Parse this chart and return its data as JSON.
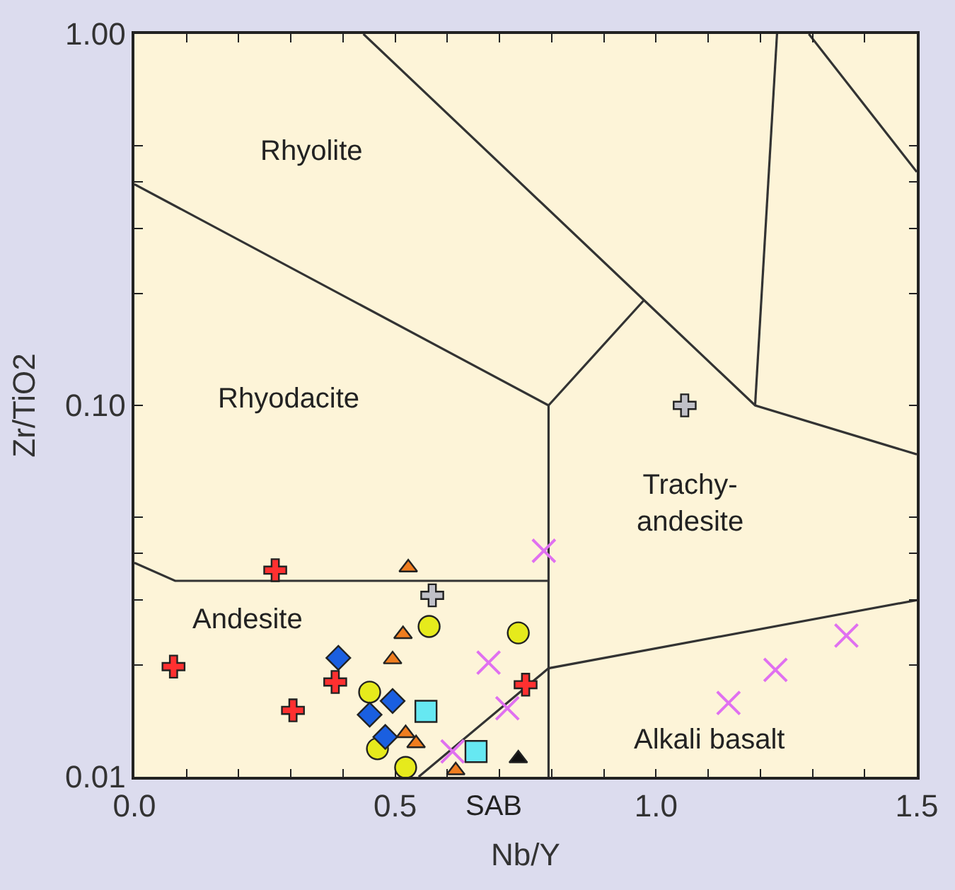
{
  "chart_data": {
    "type": "scatter",
    "xlabel": "Nb/Y",
    "ylabel": "Zr/TiO2",
    "log": "y",
    "grid": false,
    "xlim": [
      0,
      1.5
    ],
    "ylim": [
      0.01,
      1.0
    ],
    "xticks": [
      {
        "value": 0,
        "label": "0.0"
      },
      {
        "value": 0.1,
        "label": null
      },
      {
        "value": 0.2,
        "label": null
      },
      {
        "value": 0.3,
        "label": null
      },
      {
        "value": 0.4,
        "label": null
      },
      {
        "value": 0.5,
        "label": "0.5"
      },
      {
        "value": 0.6,
        "label": null
      },
      {
        "value": 0.7,
        "label": null
      },
      {
        "value": 0.8,
        "label": null
      },
      {
        "value": 0.9,
        "label": null
      },
      {
        "value": 1.0,
        "label": "1.0"
      },
      {
        "value": 1.1,
        "label": null
      },
      {
        "value": 1.2,
        "label": null
      },
      {
        "value": 1.3,
        "label": null
      },
      {
        "value": 1.4,
        "label": null
      },
      {
        "value": 1.5,
        "label": "1.5"
      }
    ],
    "yticks": [
      {
        "value": 0.01,
        "label": "0.01"
      },
      {
        "value": 0.02,
        "label": null
      },
      {
        "value": 0.03,
        "label": null
      },
      {
        "value": 0.04,
        "label": null
      },
      {
        "value": 0.05,
        "label": null
      },
      {
        "value": 0.1,
        "label": "0.10"
      },
      {
        "value": 0.2,
        "label": null
      },
      {
        "value": 0.3,
        "label": null
      },
      {
        "value": 0.4,
        "label": null
      },
      {
        "value": 0.5,
        "label": null
      },
      {
        "value": 1.0,
        "label": "1.00"
      }
    ],
    "series": [
      {
        "type": "line",
        "color": "#333333",
        "x": [
          0,
          0.794,
          0.794
        ],
        "values": [
          0.394,
          0.1,
          0.01
        ]
      },
      {
        "type": "line",
        "color": "#333333",
        "x": [
          0.439,
          0.977,
          1.19,
          1.5
        ],
        "values": [
          1.0,
          0.192,
          0.1,
          0.0738
        ]
      },
      {
        "type": "line",
        "color": "#333333",
        "x": [
          0.794,
          0.977
        ],
        "values": [
          0.1,
          0.192
        ]
      },
      {
        "type": "line",
        "color": "#333333",
        "x": [
          1.232,
          1.19
        ],
        "values": [
          1.0,
          0.1
        ]
      },
      {
        "type": "line",
        "color": "#333333",
        "x": [
          1.293,
          1.5
        ],
        "values": [
          1.0,
          0.425
        ]
      },
      {
        "type": "line",
        "color": "#333333",
        "x": [
          0,
          0.078,
          0.794
        ],
        "values": [
          0.0377,
          0.0337,
          0.0337
        ]
      },
      {
        "type": "line",
        "color": "#333333",
        "x": [
          0.545,
          0.794,
          1.5
        ],
        "values": [
          0.01,
          0.0196,
          0.0299
        ]
      },
      {
        "marker": "cross",
        "color": "#ff3030",
        "x": [
          0.27,
          0.075,
          0.385,
          0.304,
          0.75
        ],
        "values": [
          0.036,
          0.0198,
          0.018,
          0.0151,
          0.0177
        ]
      },
      {
        "marker": "x",
        "color": "#e070f0",
        "x": [
          0.785,
          0.679,
          0.715,
          0.61,
          1.139,
          1.229,
          1.365
        ],
        "values": [
          0.0406,
          0.0203,
          0.0153,
          0.0117,
          0.0158,
          0.0194,
          0.024
        ]
      },
      {
        "marker": "triangle",
        "color": "#ef7d1f",
        "x": [
          0.525,
          0.515,
          0.495,
          0.52,
          0.54,
          0.616
        ],
        "values": [
          0.0366,
          0.0242,
          0.0207,
          0.0131,
          0.0123,
          0.0104
        ]
      },
      {
        "marker": "circle",
        "color": "#e6ea1c",
        "x": [
          0.565,
          0.736,
          0.451,
          0.466,
          0.52
        ],
        "values": [
          0.0254,
          0.0244,
          0.0169,
          0.0119,
          0.0106
        ]
      },
      {
        "marker": "diamond",
        "color": "#1a5fe0",
        "x": [
          0.391,
          0.495,
          0.451,
          0.481
        ],
        "values": [
          0.0209,
          0.016,
          0.0147,
          0.0128
        ]
      },
      {
        "marker": "square",
        "color": "#66e8f2",
        "x": [
          0.559,
          0.655
        ],
        "values": [
          0.015,
          0.0117
        ]
      },
      {
        "marker": "cross",
        "color": "#c0c0c8",
        "x": [
          0.571,
          1.055
        ],
        "values": [
          0.0308,
          0.1
        ]
      },
      {
        "marker": "triangle",
        "color": "#111111",
        "x": [
          0.736
        ],
        "values": [
          0.0112
        ]
      }
    ],
    "annotations": [
      "Rhyolite",
      "Rhyodacite",
      "Trachy-\nandesite",
      "Andesite",
      "Alkali basalt",
      "SAB"
    ]
  }
}
